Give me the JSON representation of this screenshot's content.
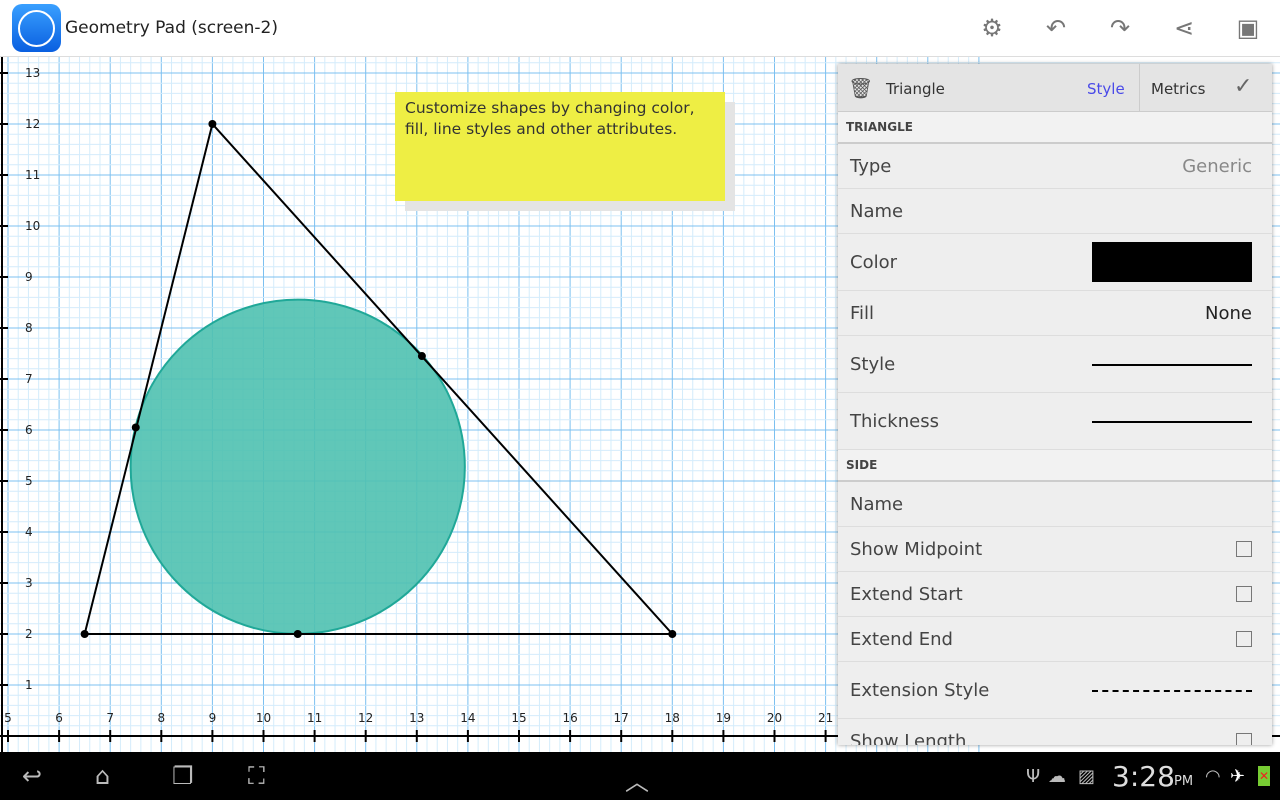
{
  "app": {
    "title": "Geometry Pad (screen-2)"
  },
  "toolbar": {
    "icons": [
      "gear-icon",
      "undo-icon",
      "redo-icon",
      "share-icon",
      "save-icon"
    ]
  },
  "note": {
    "text": "Customize shapes by changing color, fill, line styles and other attributes."
  },
  "graph": {
    "x_ticks": [
      5,
      6,
      7,
      8,
      9,
      10,
      11,
      12,
      13,
      14,
      15,
      16,
      17,
      18,
      19,
      20,
      21
    ],
    "y_ticks": [
      1,
      2,
      3,
      4,
      5,
      6,
      7,
      8,
      9,
      10,
      11,
      12,
      13
    ],
    "triangle": [
      [
        6.5,
        2
      ],
      [
        9,
        12
      ],
      [
        18,
        2
      ]
    ],
    "circle": {
      "cx": 10.67,
      "cy": 5.28,
      "r": 3.27,
      "fill": "#4fc1b0"
    },
    "points": [
      [
        7.5,
        6.05
      ],
      [
        13.1,
        7.45
      ],
      [
        10.67,
        2
      ]
    ]
  },
  "panel": {
    "title": "Triangle",
    "tab_style": "Style",
    "tab_metrics": "Metrics",
    "section_triangle": "TRIANGLE",
    "section_side": "SIDE",
    "type_label": "Type",
    "type_value": "Generic",
    "name_label": "Name",
    "color_label": "Color",
    "color_value": "#000000",
    "fill_label": "Fill",
    "fill_value": "None",
    "style_label": "Style",
    "thickness_label": "Thickness",
    "side_name_label": "Name",
    "show_midpoint": "Show Midpoint",
    "extend_start": "Extend Start",
    "extend_end": "Extend End",
    "extension_style": "Extension Style",
    "show_length": "Show Length",
    "accent": "#4a4ae8"
  },
  "status": {
    "time": "3:28",
    "ampm": "PM"
  }
}
